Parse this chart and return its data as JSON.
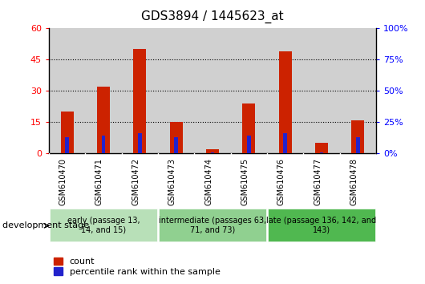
{
  "title": "GDS3894 / 1445623_at",
  "samples": [
    "GSM610470",
    "GSM610471",
    "GSM610472",
    "GSM610473",
    "GSM610474",
    "GSM610475",
    "GSM610476",
    "GSM610477",
    "GSM610478"
  ],
  "count_values": [
    20,
    32,
    50,
    15,
    2,
    24,
    49,
    5,
    16
  ],
  "percentile_values": [
    13,
    14,
    16,
    13,
    1,
    14,
    16,
    1,
    13
  ],
  "ylim_left": [
    0,
    60
  ],
  "ylim_right": [
    0,
    100
  ],
  "yticks_left": [
    0,
    15,
    30,
    45,
    60
  ],
  "yticks_right": [
    0,
    25,
    50,
    75,
    100
  ],
  "bar_color": "#cc2200",
  "percentile_color": "#2222cc",
  "tick_bg_color": "#d0d0d0",
  "group_colors": [
    "#b8e0b8",
    "#90d090",
    "#50b850"
  ],
  "group_labels": [
    "early (passage 13,\n14, and 15)",
    "intermediate (passages 63,\n71, and 73)",
    "late (passage 136, 142, and\n143)"
  ],
  "group_ranges": [
    [
      0,
      3
    ],
    [
      3,
      6
    ],
    [
      6,
      9
    ]
  ],
  "dev_stage_label": "development stage",
  "legend_count": "count",
  "legend_pct": "percentile rank within the sample",
  "title_fontsize": 11,
  "axis_label_fontsize": 8,
  "tick_fontsize": 8,
  "sample_fontsize": 7,
  "group_fontsize": 7,
  "legend_fontsize": 8
}
